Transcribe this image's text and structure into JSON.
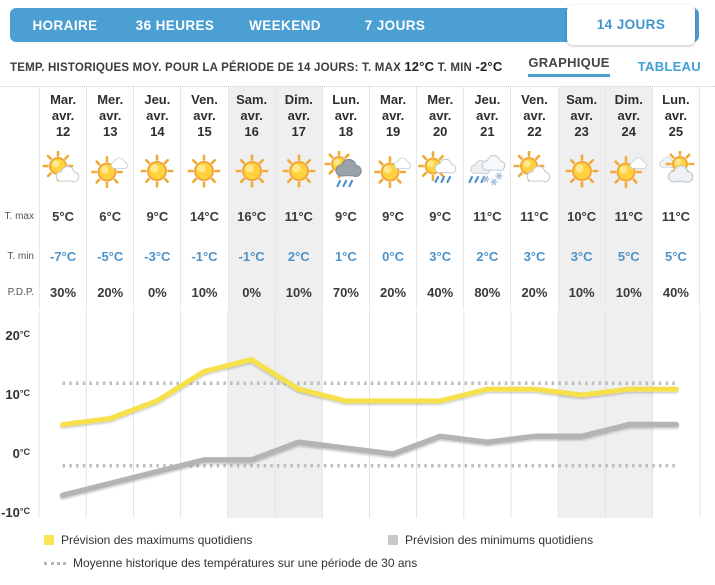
{
  "tabs": [
    {
      "label": "HORAIRE",
      "active": false
    },
    {
      "label": "36 HEURES",
      "active": false
    },
    {
      "label": "WEEKEND",
      "active": false
    },
    {
      "label": "7 JOURS",
      "active": false
    },
    {
      "label": "14 JOURS",
      "active": true
    }
  ],
  "subheader": {
    "text_prefix": "TEMP. HISTORIQUES MOY. POUR LA PÉRIODE DE 14 JOURS: T. MAX",
    "t_max": "12°C",
    "t_min_label": "T. MIN",
    "t_min": "-2°C",
    "view_graph": "GRAPHIQUE",
    "view_table": "TABLEAU"
  },
  "row_labels": {
    "t_max": "T. max",
    "t_min": "T. min",
    "pdp": "P.D.P."
  },
  "days": [
    {
      "dow": "Mar.",
      "month": "avr.",
      "date": "12",
      "icon": "partly-cloudy",
      "t_max": "5°C",
      "t_min": "-7°C",
      "pdp": "30%",
      "weekend": false
    },
    {
      "dow": "Mer.",
      "month": "avr.",
      "date": "13",
      "icon": "mostly-sunny",
      "t_max": "6°C",
      "t_min": "-5°C",
      "pdp": "20%",
      "weekend": false
    },
    {
      "dow": "Jeu.",
      "month": "avr.",
      "date": "14",
      "icon": "sunny",
      "t_max": "9°C",
      "t_min": "-3°C",
      "pdp": "0%",
      "weekend": false
    },
    {
      "dow": "Ven.",
      "month": "avr.",
      "date": "15",
      "icon": "sunny",
      "t_max": "14°C",
      "t_min": "-1°C",
      "pdp": "10%",
      "weekend": false
    },
    {
      "dow": "Sam.",
      "month": "avr.",
      "date": "16",
      "icon": "sunny",
      "t_max": "16°C",
      "t_min": "-1°C",
      "pdp": "0%",
      "weekend": true
    },
    {
      "dow": "Dim.",
      "month": "avr.",
      "date": "17",
      "icon": "sunny",
      "t_max": "11°C",
      "t_min": "2°C",
      "pdp": "10%",
      "weekend": true
    },
    {
      "dow": "Lun.",
      "month": "avr.",
      "date": "18",
      "icon": "dark-rain",
      "t_max": "9°C",
      "t_min": "1°C",
      "pdp": "70%",
      "weekend": false
    },
    {
      "dow": "Mar.",
      "month": "avr.",
      "date": "19",
      "icon": "mostly-sunny",
      "t_max": "9°C",
      "t_min": "0°C",
      "pdp": "20%",
      "weekend": false
    },
    {
      "dow": "Mer.",
      "month": "avr.",
      "date": "20",
      "icon": "sun-rain",
      "t_max": "9°C",
      "t_min": "3°C",
      "pdp": "40%",
      "weekend": false
    },
    {
      "dow": "Jeu.",
      "month": "avr.",
      "date": "21",
      "icon": "rain-snow",
      "t_max": "11°C",
      "t_min": "2°C",
      "pdp": "80%",
      "weekend": false
    },
    {
      "dow": "Ven.",
      "month": "avr.",
      "date": "22",
      "icon": "partly-cloudy",
      "t_max": "11°C",
      "t_min": "3°C",
      "pdp": "20%",
      "weekend": false
    },
    {
      "dow": "Sam.",
      "month": "avr.",
      "date": "23",
      "icon": "sunny",
      "t_max": "10°C",
      "t_min": "3°C",
      "pdp": "10%",
      "weekend": true
    },
    {
      "dow": "Dim.",
      "month": "avr.",
      "date": "24",
      "icon": "mostly-sunny",
      "t_max": "11°C",
      "t_min": "5°C",
      "pdp": "10%",
      "weekend": true
    },
    {
      "dow": "Lun.",
      "month": "avr.",
      "date": "25",
      "icon": "mostly-cloudy",
      "t_max": "11°C",
      "t_min": "5°C",
      "pdp": "40%",
      "weekend": false
    }
  ],
  "chart_data": {
    "type": "line",
    "categories": [
      "avr. 12",
      "avr. 13",
      "avr. 14",
      "avr. 15",
      "avr. 16",
      "avr. 17",
      "avr. 18",
      "avr. 19",
      "avr. 20",
      "avr. 21",
      "avr. 22",
      "avr. 23",
      "avr. 24",
      "avr. 25"
    ],
    "series": [
      {
        "name": "Prévision des maximums quotidiens",
        "color": "#F6E14C",
        "values": [
          5,
          6,
          9,
          14,
          16,
          11,
          9,
          9,
          9,
          11,
          11,
          10,
          11,
          11
        ]
      },
      {
        "name": "Prévision des minimums quotidiens",
        "color": "#B4B4B4",
        "values": [
          -7,
          -5,
          -3,
          -1,
          -1,
          2,
          1,
          0,
          3,
          2,
          3,
          3,
          5,
          5
        ]
      }
    ],
    "historical": {
      "label": "Moyenne historique des températures sur une période de 30 ans",
      "max": 12,
      "min": -2,
      "color": "#BDBDBD"
    },
    "y_ticks": [
      20,
      10,
      0,
      -10
    ],
    "unit": "°C",
    "ylim": [
      -12,
      22
    ],
    "grid": "vertical-per-day",
    "legend_position": "bottom"
  },
  "colors": {
    "nav_blue": "#4C9FD3",
    "active_tab_text": "#3E96CC",
    "link_blue": "#41A0D6",
    "tmin_blue": "#4E93C8",
    "max_line_yellow": "#F6E14C",
    "min_line_gray": "#B4B4B4",
    "historical_dotted": "#BDBDBD",
    "weekend_bg": "#EFEFEF"
  }
}
